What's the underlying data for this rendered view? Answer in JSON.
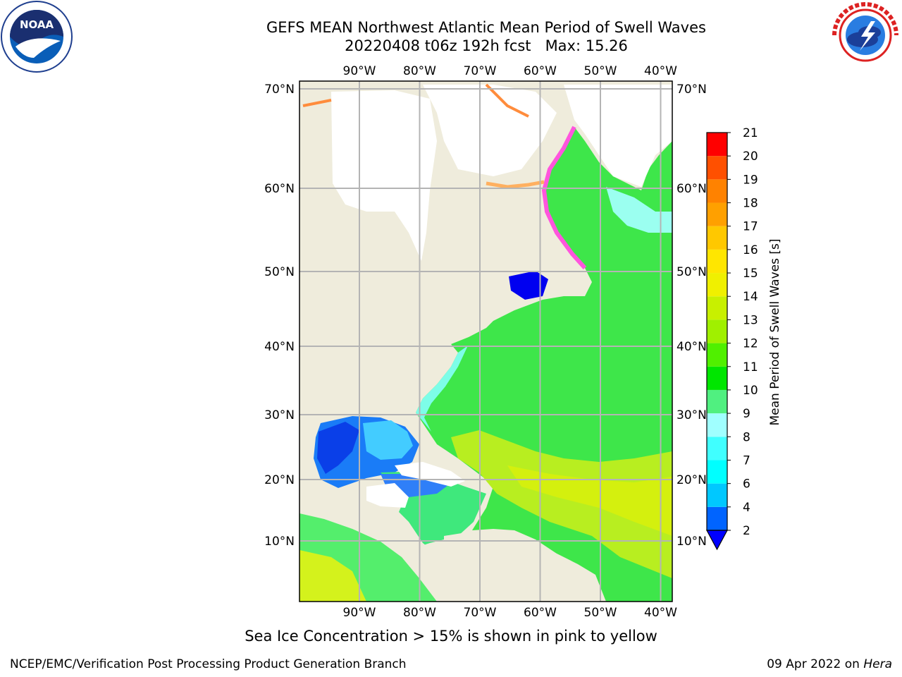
{
  "title": {
    "line1": "GEFS MEAN Northwest Atlantic Mean Period of Swell Waves",
    "line2": "20220408 t06z 192h fcst   Max: 15.26"
  },
  "logos": {
    "left": "noaa-logo",
    "left_text": "NOAA",
    "right": "nws-logo",
    "right_text": "NATIONAL WEATHER SERVICE"
  },
  "map": {
    "lon_labels": [
      "90°W",
      "80°W",
      "70°W",
      "60°W",
      "50°W",
      "40°W"
    ],
    "lon_values": [
      -90,
      -80,
      -70,
      -60,
      -50,
      -40
    ],
    "lat_labels": [
      "70°N",
      "60°N",
      "50°N",
      "40°N",
      "30°N",
      "20°N",
      "10°N"
    ],
    "lat_values": [
      70,
      60,
      50,
      40,
      30,
      20,
      10
    ],
    "colors": {
      "land": "#efecdc",
      "ice_free_land": "#ffffff",
      "grid": "#b4b4b4",
      "coast": "#000000"
    }
  },
  "colorbar": {
    "label": "Mean Period of Swell Waves [s]",
    "ticks": [
      "2",
      "4",
      "6",
      "7",
      "8",
      "9",
      "10",
      "11",
      "12",
      "13",
      "14",
      "15",
      "16",
      "17",
      "18",
      "19",
      "20",
      "21"
    ],
    "colors": [
      "#0064ff",
      "#00c8ff",
      "#00ffff",
      "#40ffff",
      "#a0ffff",
      "#50f080",
      "#00e600",
      "#50f000",
      "#a0f000",
      "#c8f000",
      "#f0f000",
      "#ffe600",
      "#ffc800",
      "#ffa000",
      "#ff8200",
      "#ff5000",
      "#ff0000"
    ],
    "under_color": "#0000ff"
  },
  "note": "Sea Ice Concentration > 15% is shown in pink to yellow",
  "footer": {
    "left": "NCEP/EMC/Verification Post Processing Product Generation Branch",
    "right_prefix": "09 Apr 2022 on ",
    "right_machine": "Hera"
  }
}
